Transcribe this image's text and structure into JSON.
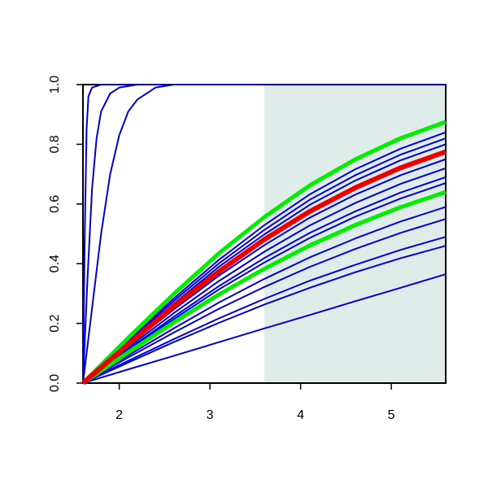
{
  "chart_data": {
    "type": "line",
    "xlim": [
      1.6,
      5.6
    ],
    "ylim": [
      0,
      1
    ],
    "xticks": [
      2,
      3,
      4,
      5
    ],
    "yticks": [
      {
        "value": 0,
        "label": "0.0"
      },
      {
        "value": 0.2,
        "label": "0.2"
      },
      {
        "value": 0.4,
        "label": "0.4"
      },
      {
        "value": 0.6,
        "label": "0.6"
      },
      {
        "value": 0.8,
        "label": "0.8"
      },
      {
        "value": 1,
        "label": "1.0"
      }
    ],
    "shaded_region": {
      "x": [
        3.6,
        5.6
      ],
      "color": "#dfecea"
    },
    "series": [
      {
        "color": "#0000dd",
        "width": 2,
        "x": [
          1.6,
          1.62,
          1.64,
          1.66,
          1.7,
          1.8,
          5.6
        ],
        "values": [
          0,
          0.5,
          0.85,
          0.96,
          0.99,
          1,
          1
        ]
      },
      {
        "color": "#0000dd",
        "width": 2,
        "x": [
          1.6,
          1.65,
          1.7,
          1.75,
          1.8,
          1.9,
          2.0,
          2.2,
          5.6
        ],
        "values": [
          0,
          0.35,
          0.65,
          0.82,
          0.91,
          0.97,
          0.99,
          1,
          1
        ]
      },
      {
        "color": "#0000dd",
        "width": 2,
        "x": [
          1.6,
          1.7,
          1.8,
          1.9,
          2.0,
          2.1,
          2.2,
          2.4,
          2.6,
          5.6
        ],
        "values": [
          0,
          0.25,
          0.5,
          0.7,
          0.83,
          0.91,
          0.95,
          0.99,
          1,
          1
        ]
      },
      {
        "color": "#0000dd",
        "width": 2,
        "x": [
          1.6,
          2.1,
          2.6,
          3.1,
          3.6,
          4.1,
          4.6,
          5.1,
          5.6
        ],
        "values": [
          0,
          0.144,
          0.283,
          0.413,
          0.529,
          0.632,
          0.716,
          0.785,
          0.84
        ]
      },
      {
        "color": "#0000dd",
        "width": 2,
        "x": [
          1.6,
          2.1,
          2.6,
          3.1,
          3.6,
          4.1,
          4.6,
          5.1,
          5.6
        ],
        "values": [
          0,
          0.14,
          0.275,
          0.401,
          0.513,
          0.614,
          0.696,
          0.765,
          0.82
        ]
      },
      {
        "color": "#0000dd",
        "width": 2,
        "x": [
          1.6,
          2.1,
          2.6,
          3.1,
          3.6,
          4.1,
          4.6,
          5.1,
          5.6
        ],
        "values": [
          0,
          0.136,
          0.266,
          0.39,
          0.498,
          0.597,
          0.678,
          0.746,
          0.8
        ]
      },
      {
        "color": "#0000dd",
        "width": 2,
        "x": [
          1.6,
          2.1,
          2.6,
          3.1,
          3.6,
          4.1,
          4.6,
          5.1,
          5.6
        ],
        "values": [
          0,
          0.125,
          0.246,
          0.36,
          0.462,
          0.554,
          0.631,
          0.696,
          0.75
        ]
      },
      {
        "color": "#0000dd",
        "width": 2,
        "x": [
          1.6,
          2.1,
          2.6,
          3.1,
          3.6,
          4.1,
          4.6,
          5.1,
          5.6
        ],
        "values": [
          0,
          0.119,
          0.234,
          0.342,
          0.44,
          0.528,
          0.603,
          0.667,
          0.72
        ]
      },
      {
        "color": "#0000dd",
        "width": 2,
        "x": [
          1.6,
          2.1,
          2.6,
          3.1,
          3.6,
          4.1,
          4.6,
          5.1,
          5.6
        ],
        "values": [
          0,
          0.113,
          0.222,
          0.325,
          0.419,
          0.503,
          0.575,
          0.638,
          0.69
        ]
      },
      {
        "color": "#0000dd",
        "width": 2,
        "x": [
          1.6,
          2.1,
          2.6,
          3.1,
          3.6,
          4.1,
          4.6,
          5.1,
          5.6
        ],
        "values": [
          0,
          0.109,
          0.214,
          0.314,
          0.404,
          0.486,
          0.557,
          0.618,
          0.67
        ]
      },
      {
        "color": "#0000dd",
        "width": 2,
        "x": [
          1.6,
          2.1,
          2.6,
          3.1,
          3.6,
          4.1,
          4.6,
          5.1,
          5.6
        ],
        "values": [
          0,
          0.093,
          0.183,
          0.27,
          0.349,
          0.421,
          0.484,
          0.541,
          0.59
        ]
      },
      {
        "color": "#0000dd",
        "width": 2,
        "x": [
          1.6,
          2.1,
          2.6,
          3.1,
          3.6,
          4.1,
          4.6,
          5.1,
          5.6
        ],
        "values": [
          0,
          0.086,
          0.169,
          0.249,
          0.322,
          0.389,
          0.449,
          0.503,
          0.55
        ]
      },
      {
        "color": "#0000dd",
        "width": 2,
        "x": [
          1.6,
          2.1,
          2.6,
          3.1,
          3.6,
          4.1,
          4.6,
          5.1,
          5.6
        ],
        "values": [
          0,
          0.075,
          0.147,
          0.217,
          0.282,
          0.343,
          0.396,
          0.446,
          0.49
        ]
      },
      {
        "color": "#0000dd",
        "width": 2,
        "x": [
          1.6,
          2.1,
          2.6,
          3.1,
          3.6,
          4.1,
          4.6,
          5.1,
          5.6
        ],
        "values": [
          0,
          0.069,
          0.137,
          0.202,
          0.263,
          0.319,
          0.371,
          0.418,
          0.46
        ]
      },
      {
        "color": "#0000dd",
        "width": 2,
        "x": [
          1.6,
          2.1,
          2.6,
          3.1,
          3.6,
          4.1,
          4.6,
          5.1,
          5.6
        ],
        "values": [
          0,
          0.046,
          0.091,
          0.137,
          0.183,
          0.228,
          0.274,
          0.319,
          0.365
        ]
      },
      {
        "color": "#00ee00",
        "width": 5,
        "x": [
          1.6,
          2.1,
          2.6,
          3.1,
          3.6,
          4.1,
          4.6,
          5.1,
          5.6
        ],
        "values": [
          0,
          0.152,
          0.298,
          0.435,
          0.556,
          0.662,
          0.749,
          0.82,
          0.875
        ]
      },
      {
        "color": "#00ee00",
        "width": 5,
        "x": [
          1.6,
          2.1,
          2.6,
          3.1,
          3.6,
          4.1,
          4.6,
          5.1,
          5.6
        ],
        "values": [
          0,
          0.103,
          0.203,
          0.297,
          0.383,
          0.461,
          0.529,
          0.589,
          0.64
        ]
      },
      {
        "color": "#ee0000",
        "width": 6,
        "x": [
          1.6,
          2.1,
          2.6,
          3.1,
          3.6,
          4.1,
          4.6,
          5.1,
          5.6
        ],
        "values": [
          0,
          0.13,
          0.257,
          0.374,
          0.481,
          0.575,
          0.654,
          0.721,
          0.775
        ]
      }
    ]
  }
}
